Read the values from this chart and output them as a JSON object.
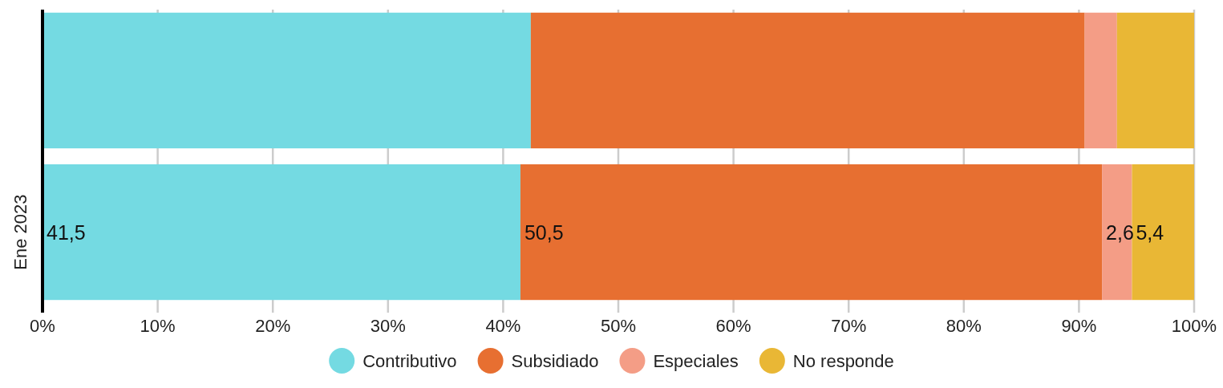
{
  "chart_data": {
    "type": "bar",
    "orientation": "horizontal",
    "stacked": true,
    "categories": [
      null,
      "Ene 2023"
    ],
    "series": [
      {
        "name": "Contributivo",
        "color": "#74dae2",
        "values": [
          42.4,
          41.5
        ],
        "value_labels": [
          null,
          "41,5"
        ]
      },
      {
        "name": "Subsidiado",
        "color": "#e76f31",
        "values": [
          48.1,
          50.5
        ],
        "value_labels": [
          null,
          "50,5"
        ]
      },
      {
        "name": "Especiales",
        "color": "#f49d86",
        "values": [
          2.8,
          2.6
        ],
        "value_labels": [
          null,
          "2,6"
        ]
      },
      {
        "name": "No responde",
        "color": "#e9b735",
        "values": [
          6.7,
          5.4
        ],
        "value_labels": [
          null,
          "5,4"
        ]
      }
    ],
    "xlim": [
      0,
      100
    ],
    "xticks": [
      {
        "value": 0,
        "label": "0%"
      },
      {
        "value": 10,
        "label": "10%"
      },
      {
        "value": 20,
        "label": "20%"
      },
      {
        "value": 30,
        "label": "30%"
      },
      {
        "value": 40,
        "label": "40%"
      },
      {
        "value": 50,
        "label": "50%"
      },
      {
        "value": 60,
        "label": "60%"
      },
      {
        "value": 70,
        "label": "70%"
      },
      {
        "value": 80,
        "label": "80%"
      },
      {
        "value": 90,
        "label": "90%"
      },
      {
        "value": 100,
        "label": "100%"
      }
    ],
    "grid": "x",
    "legend": "bottom"
  }
}
